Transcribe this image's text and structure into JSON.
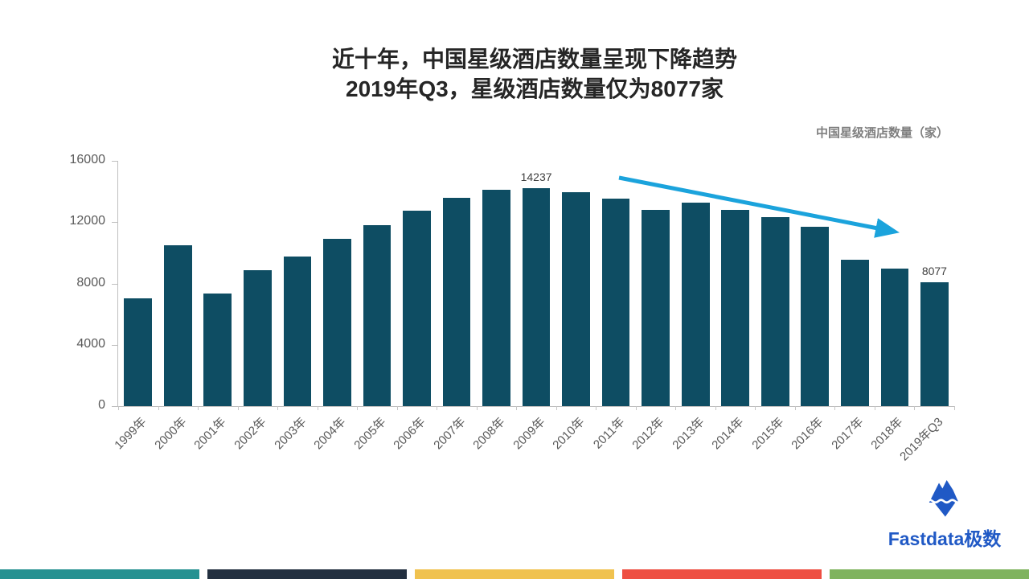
{
  "title": {
    "line1": "近十年，中国星级酒店数量呈现下降趋势",
    "line2": "2019年Q3，星级酒店数量仅为8077家"
  },
  "legend": {
    "series_label": "中国星级酒店数量（家）"
  },
  "chart_data": {
    "type": "bar",
    "title": "近十年，中国星级酒店数量呈现下降趋势 2019年Q3，星级酒店数量仅为8077家",
    "xlabel": "",
    "ylabel": "中国星级酒店数量（家）",
    "categories": [
      "1999年",
      "2000年",
      "2001年",
      "2002年",
      "2003年",
      "2004年",
      "2005年",
      "2006年",
      "2007年",
      "2008年",
      "2009年",
      "2010年",
      "2011年",
      "2012年",
      "2013年",
      "2014年",
      "2015年",
      "2016年",
      "2017年",
      "2018年",
      "2019年Q3"
    ],
    "series": [
      {
        "name": "中国星级酒店数量（家）",
        "values": [
          7035,
          10481,
          7358,
          8880,
          9751,
          10888,
          11828,
          12751,
          13583,
          14099,
          14237,
          13930,
          13513,
          12807,
          13273,
          12803,
          12327,
          11685,
          9531,
          8949,
          8077
        ]
      }
    ],
    "ylim": [
      0,
      16000
    ],
    "yticks": [
      0,
      4000,
      8000,
      12000,
      16000
    ],
    "grid": false,
    "legend_position": "top-right",
    "bar_color": "#0e4d63",
    "data_labels": [
      {
        "index": 10,
        "text": "14237"
      },
      {
        "index": 20,
        "text": "8077"
      }
    ],
    "annotation_arrow": {
      "color": "#1ba3dc",
      "note": "下降趋势（downward trend）"
    }
  },
  "logo": {
    "text": "Fastdata极数",
    "color": "#2059c5"
  },
  "footer_stripe": {
    "colors": [
      "#259191",
      "#233040",
      "#f0c24f",
      "#ee4f42",
      "#7fb35e"
    ]
  }
}
